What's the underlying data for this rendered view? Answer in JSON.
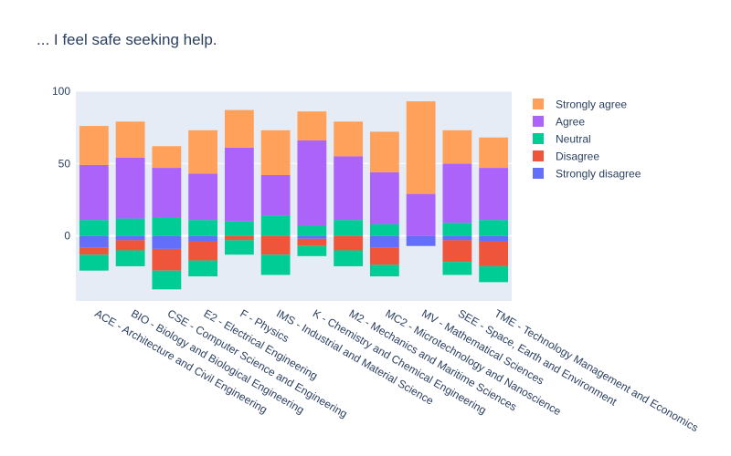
{
  "chart_data": {
    "type": "bar",
    "stacked": "relative",
    "title": "... I feel safe seeking help.",
    "xlabel": "",
    "ylabel": "",
    "ylim": [
      -45,
      100
    ],
    "yticks": [
      0,
      50,
      100
    ],
    "grid": true,
    "legend_position": "right",
    "categories": [
      "ACE - Architecture and Civil Engineering",
      "BIO - Biology and Biological Engineering",
      "CSE - Computer Science and Engineering",
      "E2 - Electrical Engineering",
      "F - Physics",
      "IMS - Industrial and Material Science",
      "K - Chemistry and Chemical Engineering",
      "M2 - Mechanics and Maritime Sciences",
      "MC2 - Microtechnology and Nanoscience",
      "MV - Mathematical Sciences",
      "SEE - Space, Earth and Environment",
      "TME - Technology Management and Economics"
    ],
    "series": [
      {
        "name": "Strongly disagree",
        "color": "#636efa",
        "values": [
          -8,
          -3,
          -9,
          -4,
          0,
          0,
          -2,
          0,
          -8,
          -7,
          -3,
          -4
        ]
      },
      {
        "name": "Disagree",
        "color": "#ef553b",
        "values": [
          -5,
          -7,
          -15,
          -13,
          -3,
          -13,
          -5,
          -10,
          -12,
          0,
          -15,
          -17
        ]
      },
      {
        "name": "Neutral",
        "color": "#00cc96",
        "values": [
          -11,
          -11,
          -13,
          -11,
          -10,
          -14,
          -7,
          -11,
          -8,
          0,
          -9,
          -11
        ]
      },
      {
        "name": "Neutral",
        "color": "#00cc96",
        "values": [
          11,
          12,
          13,
          11,
          10,
          14,
          7,
          11,
          8,
          0,
          9,
          11
        ]
      },
      {
        "name": "Agree",
        "color": "#ab63fa",
        "values": [
          38,
          42,
          34,
          32,
          51,
          28,
          59,
          44,
          36,
          29,
          41,
          36
        ]
      },
      {
        "name": "Strongly agree",
        "color": "#ffa15a",
        "values": [
          27,
          25,
          15,
          30,
          26,
          31,
          20,
          24,
          28,
          64,
          23,
          21
        ]
      }
    ],
    "legend": [
      {
        "name": "Strongly agree",
        "color": "#ffa15a"
      },
      {
        "name": "Agree",
        "color": "#ab63fa"
      },
      {
        "name": "Neutral",
        "color": "#00cc96"
      },
      {
        "name": "Disagree",
        "color": "#ef553b"
      },
      {
        "name": "Strongly disagree",
        "color": "#636efa"
      }
    ]
  },
  "colors": {
    "plot_background": "#e5ecf6",
    "grid": "#ffffff",
    "text": "#2a3f5f"
  }
}
